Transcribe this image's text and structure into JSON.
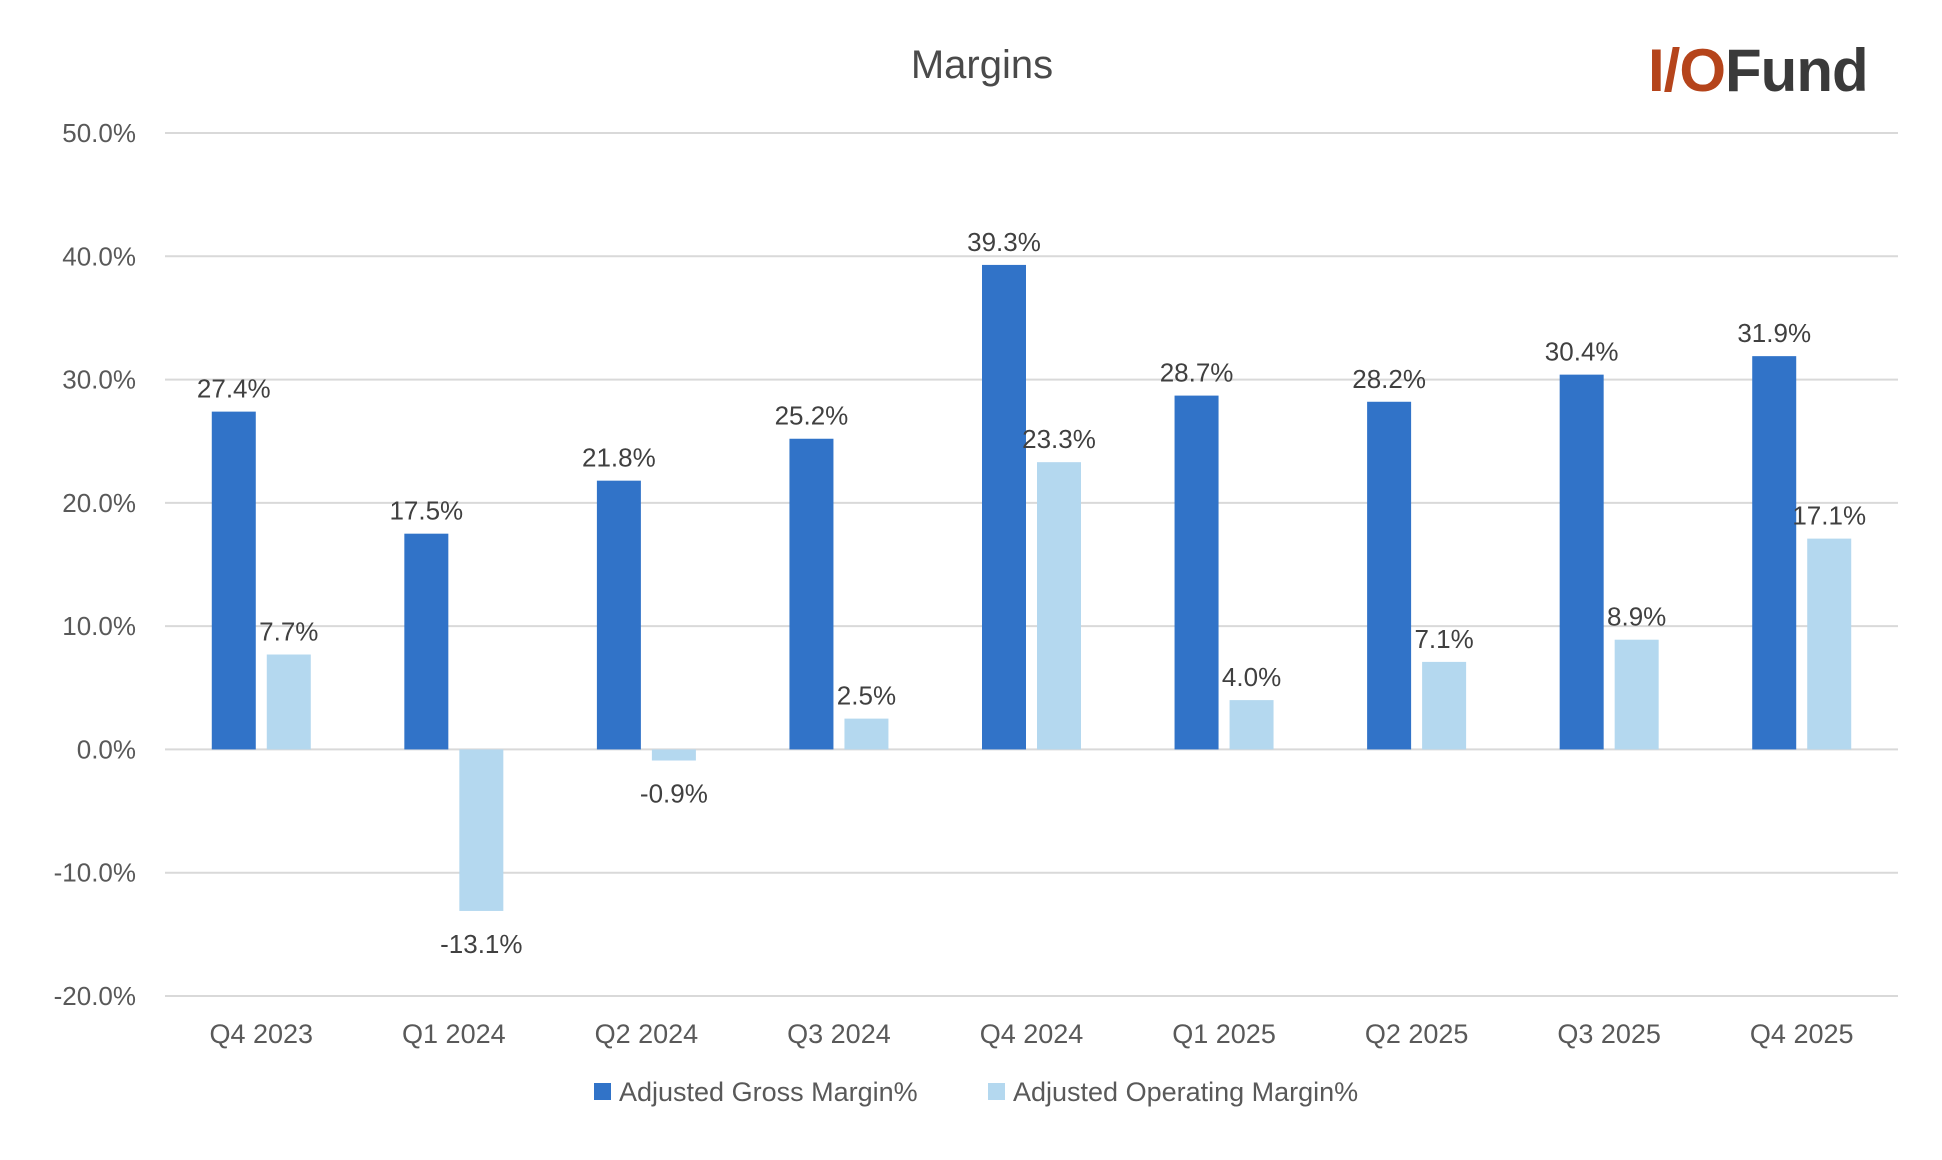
{
  "chart_data": {
    "type": "bar",
    "title": "Margins",
    "categories": [
      "Q4 2023",
      "Q1 2024",
      "Q2 2024",
      "Q3 2024",
      "Q4 2024",
      "Q1 2025",
      "Q2 2025",
      "Q3 2025",
      "Q4 2025"
    ],
    "series": [
      {
        "name": "Adjusted Gross Margin%",
        "color": "#3173c8",
        "values": [
          27.4,
          17.5,
          21.8,
          25.2,
          39.3,
          28.7,
          28.2,
          30.4,
          31.9
        ],
        "labels": [
          "27.4%",
          "17.5%",
          "21.8%",
          "25.2%",
          "39.3%",
          "28.7%",
          "28.2%",
          "30.4%",
          "31.9%"
        ]
      },
      {
        "name": "Adjusted Operating Margin%",
        "color": "#b4d8ef",
        "values": [
          7.7,
          -13.1,
          -0.9,
          2.5,
          23.3,
          4.0,
          7.1,
          8.9,
          17.1
        ],
        "labels": [
          "7.7%",
          "-13.1%",
          "-0.9%",
          "2.5%",
          "23.3%",
          "4.0%",
          "7.1%",
          "8.9%",
          "17.1%"
        ]
      }
    ],
    "ylim": [
      -20,
      50
    ],
    "yticks": [
      50,
      40,
      30,
      20,
      10,
      0,
      -10,
      -20
    ],
    "ytick_labels": [
      "50.0%",
      "40.0%",
      "30.0%",
      "20.0%",
      "10.0%",
      "0.0%",
      "-10.0%",
      "-20.0%"
    ],
    "grid": true,
    "legend_position": "bottom"
  },
  "logo": {
    "part1": "I/O",
    "part2": "Fund"
  }
}
